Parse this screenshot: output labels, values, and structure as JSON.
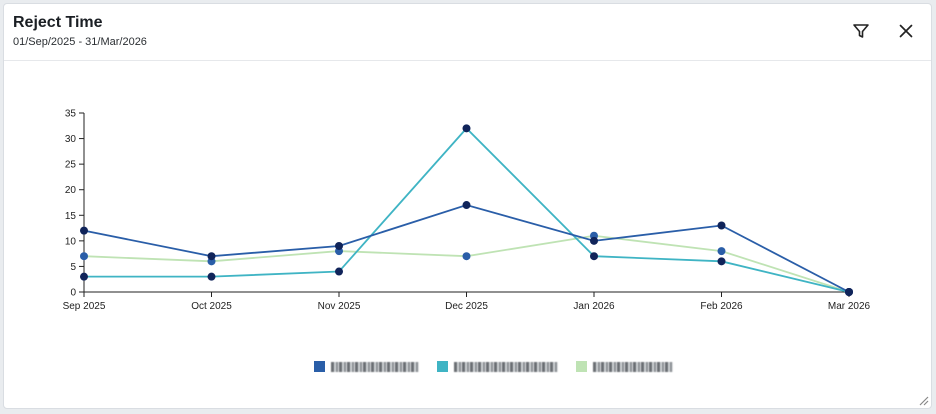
{
  "panel": {
    "title": "Reject Time",
    "date_range": "01/Sep/2025 - 31/Mar/2026",
    "filter_icon": "filter-icon",
    "close_icon": "close-icon",
    "resize_icon": "resize-handle-icon"
  },
  "chart_data": {
    "type": "line",
    "title": "",
    "xlabel": "",
    "ylabel": "",
    "categories": [
      "Sep 2025",
      "Oct 2025",
      "Nov 2025",
      "Dec 2025",
      "Jan 2026",
      "Feb 2026",
      "Mar 2026"
    ],
    "ylim": [
      0,
      35
    ],
    "yticks": [
      0,
      5,
      10,
      15,
      20,
      25,
      30,
      35
    ],
    "grid": false,
    "legend_position": "bottom",
    "series": [
      {
        "name": "",
        "color": "#2a5ea8",
        "marker": "#10245a",
        "values": [
          12,
          7,
          9,
          17,
          10,
          13,
          0
        ]
      },
      {
        "name": "",
        "color": "#3fb4c4",
        "marker": "#10245a",
        "values": [
          3,
          3,
          4,
          32,
          7,
          6,
          0
        ]
      },
      {
        "name": "",
        "color": "#bfe3b4",
        "marker": "#2a5ea8",
        "values": [
          7,
          6,
          8,
          7,
          11,
          8,
          0
        ]
      }
    ]
  }
}
